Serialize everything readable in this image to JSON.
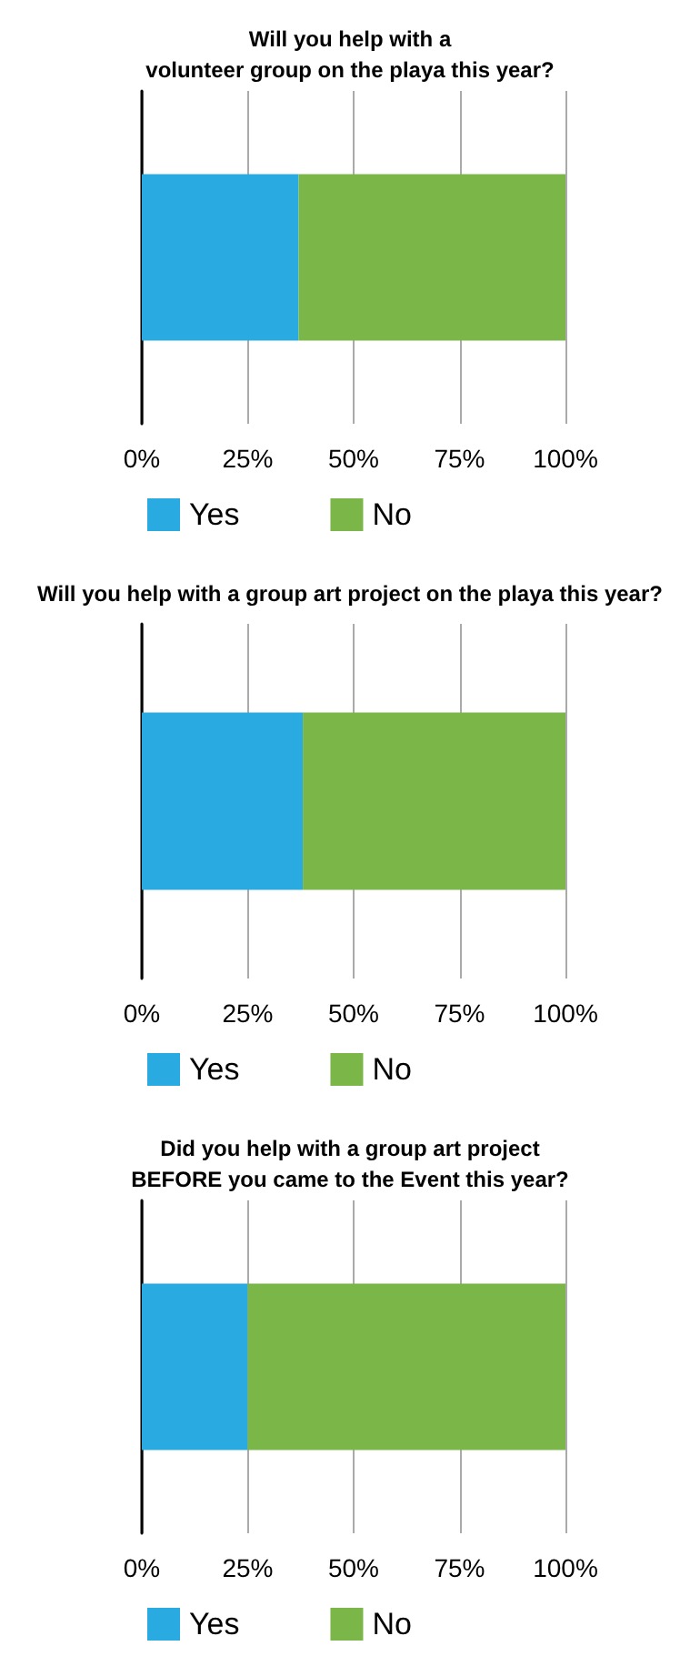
{
  "chart_data": [
    {
      "type": "bar",
      "orientation": "horizontal",
      "stacked": true,
      "title": "Will you help with a\nvolunteer group on the playa this year?",
      "categories": [
        null
      ],
      "series": [
        {
          "name": "Yes",
          "color": "#29abe2",
          "values": [
            37
          ]
        },
        {
          "name": "No",
          "color": "#7ab648",
          "values": [
            63
          ]
        }
      ],
      "xlim": [
        0,
        100
      ],
      "xticks": [
        {
          "value": 0,
          "label": "0%"
        },
        {
          "value": 25,
          "label": "25%"
        },
        {
          "value": 50,
          "label": "50%"
        },
        {
          "value": 75,
          "label": "75%"
        },
        {
          "value": 100,
          "label": "100%"
        }
      ],
      "grid": "x",
      "legend": "bottom"
    },
    {
      "type": "bar",
      "orientation": "horizontal",
      "stacked": true,
      "title": "Will you help with a group art project on the playa this year?",
      "categories": [
        null
      ],
      "series": [
        {
          "name": "Yes",
          "color": "#29abe2",
          "values": [
            38
          ]
        },
        {
          "name": "No",
          "color": "#7ab648",
          "values": [
            62
          ]
        }
      ],
      "xlim": [
        0,
        100
      ],
      "xticks": [
        {
          "value": 0,
          "label": "0%"
        },
        {
          "value": 25,
          "label": "25%"
        },
        {
          "value": 50,
          "label": "50%"
        },
        {
          "value": 75,
          "label": "75%"
        },
        {
          "value": 100,
          "label": "100%"
        }
      ],
      "grid": "x",
      "legend": "bottom"
    },
    {
      "type": "bar",
      "orientation": "horizontal",
      "stacked": true,
      "title": "Did you help with a group art project\nBEFORE you came to the Event this year?",
      "categories": [
        null
      ],
      "series": [
        {
          "name": "Yes",
          "color": "#29abe2",
          "values": [
            25
          ]
        },
        {
          "name": "No",
          "color": "#7ab648",
          "values": [
            75
          ]
        }
      ],
      "xlim": [
        0,
        100
      ],
      "xticks": [
        {
          "value": 0,
          "label": "0%"
        },
        {
          "value": 25,
          "label": "25%"
        },
        {
          "value": 50,
          "label": "50%"
        },
        {
          "value": 75,
          "label": "75%"
        },
        {
          "value": 100,
          "label": "100%"
        }
      ],
      "grid": "x",
      "legend": "bottom"
    }
  ]
}
